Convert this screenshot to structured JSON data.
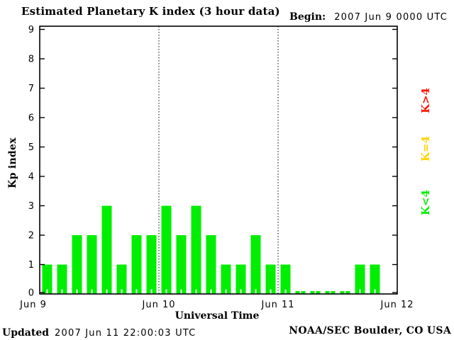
{
  "header": {
    "title": "Estimated Planetary K index (3 hour data)",
    "begin_label": "Begin:",
    "begin_value": "2007 Jun 9 0000 UTC"
  },
  "footer": {
    "updated_label": "Updated",
    "updated_value": "2007 Jun 11 22:00:03 UTC",
    "credit": "NOAA/SEC Boulder, CO USA"
  },
  "chart_data": {
    "type": "bar",
    "title": "Estimated Planetary K index (3 hour data)",
    "xlabel": "Universal Time",
    "ylabel": "Kp index",
    "ylim": [
      0,
      9
    ],
    "yticks": [
      "0",
      "1",
      "2",
      "3",
      "4",
      "5",
      "6",
      "7",
      "8",
      "9"
    ],
    "x_day_labels": [
      "Jun 9",
      "Jun 10",
      "Jun 11",
      "Jun 12"
    ],
    "begin_utc": "2007 Jun 9 0000 UTC",
    "hours_per_bar": 3,
    "bars_per_day": 8,
    "values": [
      1,
      1,
      2,
      2,
      3,
      1,
      2,
      2,
      3,
      2,
      3,
      2,
      1,
      1,
      2,
      1,
      1,
      0,
      0,
      0,
      0,
      1,
      1
    ],
    "values_by_day": {
      "Jun 9": [
        1,
        1,
        2,
        2,
        3,
        1,
        2,
        2
      ],
      "Jun 10": [
        3,
        2,
        3,
        2,
        1,
        1,
        2,
        1
      ],
      "Jun 11": [
        1,
        0,
        0,
        0,
        0,
        1,
        1
      ]
    },
    "bar_color": "#00ee00",
    "axis_color": "#000000",
    "grid": "dotted vertical lines at day boundaries (Jun 10, Jun 11)",
    "legend": {
      "position": "right",
      "orientation": "rotated-90",
      "items": [
        {
          "label": "K>4",
          "color": "#ff1400",
          "meaning": "high"
        },
        {
          "label": "K=4",
          "color": "#ffd300",
          "meaning": "mid"
        },
        {
          "label": "K<4",
          "color": "#00ee00",
          "meaning": "low"
        }
      ]
    }
  }
}
